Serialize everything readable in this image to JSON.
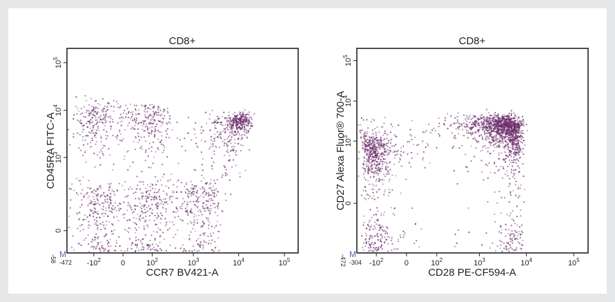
{
  "chart_data": [
    {
      "type": "scatter",
      "title": "CD8+",
      "xlabel": "CCR7 BV421-A",
      "ylabel": "CD45RA FITC-A",
      "x_scale": "biexponential",
      "y_scale": "biexponential",
      "xlim": [
        -472,
        200000
      ],
      "ylim": [
        -58,
        200000
      ],
      "x_ticks": [
        "-10",
        "0",
        "10",
        "10",
        "10",
        "10"
      ],
      "x_tick_exps": [
        "2",
        "",
        "2",
        "3",
        "4",
        "5"
      ],
      "y_ticks": [
        "0",
        "10",
        "10",
        "10"
      ],
      "y_tick_exps": [
        "",
        "3",
        "4",
        "5"
      ],
      "x_min_label": "-472",
      "y_min_label": "-58",
      "corner_label": "M",
      "color": "#6a2a6a",
      "populations": [
        {
          "x": 0,
          "y": 0,
          "spread_x": 100,
          "spread_y": 110,
          "weight": 0.28
        },
        {
          "x": -10,
          "y": 5500,
          "spread_x": 120,
          "spread_y": 4000,
          "weight": 0.2
        },
        {
          "x": 10500,
          "y": 5800,
          "spread_x": 4000,
          "spread_y": 1600,
          "weight": 0.12
        },
        {
          "x": 900,
          "y": 0,
          "spread_x": 1400,
          "spread_y": 150,
          "weight": 0.26
        },
        {
          "x": 2500,
          "y": 1200,
          "spread_x": 5000,
          "spread_y": 2500,
          "weight": 0.14
        }
      ]
    },
    {
      "type": "scatter",
      "title": "CD8+",
      "xlabel": "CD28 PE-CF594-A",
      "ylabel": "CD27 Alexa Fluor® 700-A",
      "x_scale": "biexponential",
      "y_scale": "biexponential",
      "xlim": [
        -304,
        200000
      ],
      "ylim": [
        -472,
        200000
      ],
      "x_ticks": [
        "-10",
        "0",
        "10",
        "10",
        "10",
        "10"
      ],
      "x_tick_exps": [
        "2",
        "",
        "2",
        "3",
        "4",
        "5"
      ],
      "y_ticks": [
        "0",
        "10",
        "10",
        "10"
      ],
      "y_tick_exps": [
        "",
        "3",
        "4",
        "5"
      ],
      "x_min_label": "-304",
      "y_min_label": "-472",
      "corner_label": "M",
      "color": "#6a2a6a",
      "populations": [
        {
          "x": -100,
          "y": 250,
          "spread_x": 60,
          "spread_y": 500,
          "weight": 0.3
        },
        {
          "x": 2800,
          "y": 2600,
          "spread_x": 1800,
          "spread_y": 900,
          "weight": 0.28
        },
        {
          "x": 5200,
          "y": 800,
          "spread_x": 1500,
          "spread_y": 1300,
          "weight": 0.28
        },
        {
          "x": 800,
          "y": 1500,
          "spread_x": 1500,
          "spread_y": 1500,
          "weight": 0.14
        }
      ]
    }
  ]
}
